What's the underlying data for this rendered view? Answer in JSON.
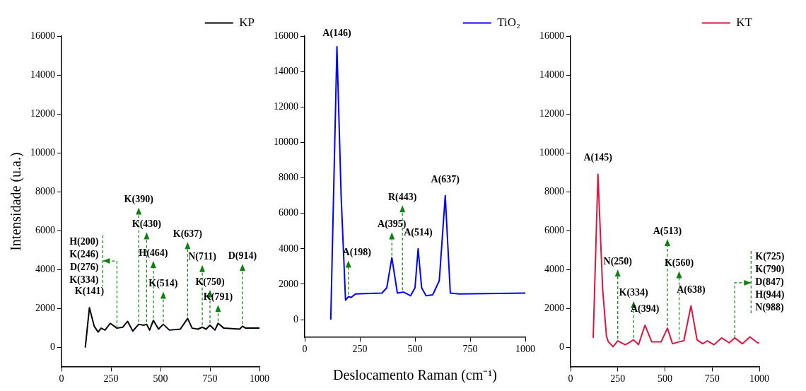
{
  "chart_data": [
    {
      "type": "line",
      "ylabel": "Intensidade (u.a.)",
      "xlim": [
        0,
        1000
      ],
      "xticks": [
        0,
        250,
        500,
        750,
        1000
      ],
      "ylim": [
        -1000,
        16000
      ],
      "yticks": [
        0,
        2000,
        4000,
        6000,
        8000,
        10000,
        12000,
        14000,
        16000
      ],
      "legend": "top right",
      "series": [
        {
          "name": "KP",
          "color": "#000000",
          "x": [
            120,
            141,
            165,
            185,
            200,
            220,
            246,
            280,
            310,
            334,
            360,
            390,
            415,
            430,
            445,
            464,
            490,
            514,
            545,
            600,
            637,
            660,
            690,
            711,
            730,
            750,
            775,
            791,
            820,
            900,
            914,
            930,
            1000
          ],
          "values": [
            0,
            2050,
            1100,
            800,
            1000,
            900,
            1250,
            1000,
            1050,
            1350,
            850,
            1200,
            1150,
            1200,
            900,
            1400,
            950,
            1200,
            900,
            950,
            1500,
            1000,
            950,
            1050,
            950,
            1150,
            900,
            1250,
            1000,
            950,
            1100,
            1000,
            1000
          ]
        }
      ],
      "annotations": [
        {
          "text": "K(141)",
          "x": 141,
          "y": 2050
        },
        {
          "text": "H(200)\nK(246)\nD(276)\nK(334)",
          "x": 280,
          "y": 1000
        },
        {
          "text": "K(390)",
          "x": 390,
          "y": 1200
        },
        {
          "text": "K(430)",
          "x": 430,
          "y": 1200
        },
        {
          "text": "H(464)",
          "x": 464,
          "y": 1400
        },
        {
          "text": "K(514)",
          "x": 514,
          "y": 1200
        },
        {
          "text": "K(637)",
          "x": 637,
          "y": 1500
        },
        {
          "text": "N(711)",
          "x": 711,
          "y": 1050
        },
        {
          "text": "K(750)",
          "x": 750,
          "y": 1150
        },
        {
          "text": "K(791)",
          "x": 791,
          "y": 1250
        },
        {
          "text": "D(914)",
          "x": 914,
          "y": 1100
        }
      ]
    },
    {
      "type": "line",
      "xlabel": "Deslocamento Raman (cm⁻¹)",
      "xlim": [
        0,
        1000
      ],
      "xticks": [
        0,
        250,
        500,
        750,
        1000
      ],
      "ylim": [
        -1000,
        16000
      ],
      "yticks": [
        0,
        2000,
        4000,
        6000,
        8000,
        10000,
        12000,
        14000,
        16000
      ],
      "legend": "top right",
      "series": [
        {
          "name": "TiO₂",
          "color": "#0000ff",
          "x": [
            118,
            146,
            165,
            185,
            198,
            210,
            230,
            350,
            372,
            395,
            420,
            443,
            450,
            480,
            500,
            514,
            530,
            550,
            580,
            610,
            637,
            660,
            700,
            1000
          ],
          "values": [
            0,
            15400,
            7000,
            1100,
            1300,
            1250,
            1450,
            1500,
            1800,
            3500,
            1500,
            1550,
            1550,
            1350,
            1800,
            4000,
            1800,
            1350,
            1400,
            2200,
            7000,
            1500,
            1450,
            1500
          ]
        }
      ],
      "annotations": [
        {
          "text": "A(146)",
          "x": 146,
          "y": 15400
        },
        {
          "text": "A(198)",
          "x": 198,
          "y": 1300
        },
        {
          "text": "A(395)",
          "x": 395,
          "y": 3500
        },
        {
          "text": "R(443)",
          "x": 443,
          "y": 1550
        },
        {
          "text": "A(514)",
          "x": 514,
          "y": 4000
        },
        {
          "text": "A(637)",
          "x": 637,
          "y": 7000
        }
      ]
    },
    {
      "type": "line",
      "xlim": [
        0,
        1000
      ],
      "xticks": [
        0,
        250,
        500,
        750,
        1000
      ],
      "ylim": [
        -1000,
        16000
      ],
      "yticks": [
        0,
        2000,
        4000,
        6000,
        8000,
        10000,
        12000,
        14000,
        16000
      ],
      "legend": "top right",
      "series": [
        {
          "name": "KT",
          "color": "#e0143c",
          "x": [
            120,
            145,
            170,
            190,
            200,
            225,
            250,
            290,
            334,
            360,
            394,
            430,
            480,
            513,
            540,
            575,
            600,
            638,
            670,
            700,
            725,
            760,
            800,
            840,
            870,
            910,
            950,
            990,
            1000
          ],
          "values": [
            500,
            8900,
            3000,
            600,
            300,
            50,
            350,
            150,
            400,
            150,
            1150,
            300,
            300,
            1000,
            200,
            300,
            350,
            2150,
            400,
            200,
            350,
            150,
            500,
            250,
            500,
            200,
            550,
            250,
            250
          ]
        }
      ],
      "annotations": [
        {
          "text": "A(145)",
          "x": 145,
          "y": 8900
        },
        {
          "text": "N(250)",
          "x": 250,
          "y": 350
        },
        {
          "text": "K(334)",
          "x": 334,
          "y": 400
        },
        {
          "text": "A(394)",
          "x": 394,
          "y": 1150
        },
        {
          "text": "A(513)",
          "x": 513,
          "y": 1000
        },
        {
          "text": "K(560)",
          "x": 575,
          "y": 300
        },
        {
          "text": "A(638)",
          "x": 638,
          "y": 2150
        },
        {
          "text": "K(725)\nK(790)\nD(847)\nH(944)\nN(988)",
          "x": 870,
          "y": 500
        }
      ]
    }
  ]
}
